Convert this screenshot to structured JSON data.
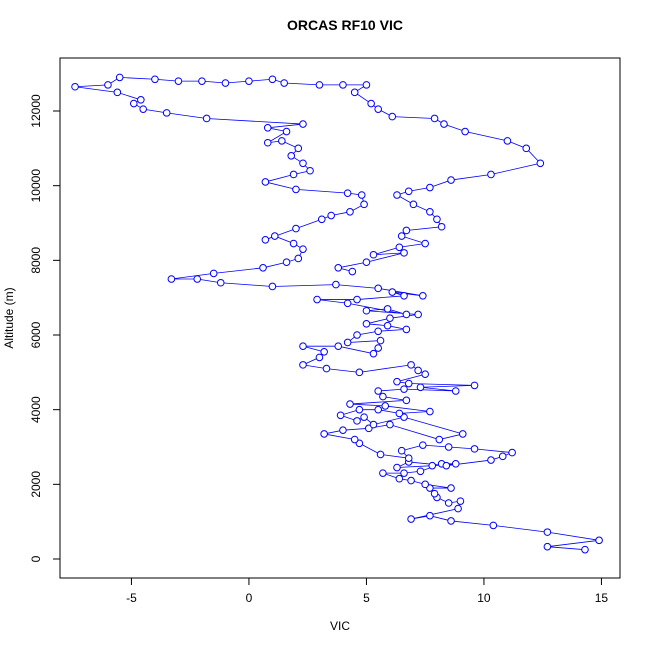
{
  "chart_data": {
    "type": "line",
    "title": "ORCAS RF10 VIC",
    "x_label": "VIC",
    "y_label": "Altitude (m)",
    "xlim": [
      -8.04,
      15.79
    ],
    "ylim": [
      -509,
      13420
    ],
    "xticks": [
      -5,
      0,
      5,
      10,
      15
    ],
    "yticks": [
      0,
      2000,
      4000,
      6000,
      8000,
      10000,
      12000
    ],
    "series": [
      {
        "name": "VIC",
        "color": "#0000ff",
        "x": [
          14.3,
          12.7,
          14.9,
          12.7,
          10.4,
          8.6,
          7.7,
          6.9,
          8.9,
          9.0,
          8.5,
          8.0,
          7.9,
          7.7,
          8.6,
          7.5,
          6.9,
          6.4,
          5.7,
          6.6,
          7.3,
          8.2,
          8.8,
          7.8,
          6.3,
          6.8,
          8.4,
          10.3,
          10.8,
          11.2,
          9.6,
          8.5,
          7.4,
          6.5,
          6.8,
          5.6,
          4.7,
          4.5,
          3.2,
          4.0,
          5.1,
          6.0,
          8.1,
          9.1,
          6.6,
          5.3,
          4.9,
          4.6,
          3.9,
          4.7,
          5.5,
          6.4,
          7.7,
          5.8,
          4.3,
          6.7,
          5.7,
          5.5,
          6.6,
          8.8,
          7.3,
          9.6,
          6.8,
          6.3,
          7.5,
          7.2,
          6.9,
          4.7,
          3.3,
          2.3,
          3.0,
          3.2,
          2.3,
          3.8,
          5.3,
          5.5,
          5.6,
          4.2,
          4.6,
          5.5,
          6.7,
          5.9,
          5.0,
          6.0,
          7.2,
          5.0,
          5.9,
          6.7,
          4.2,
          2.9,
          4.6,
          6.6,
          6.1,
          7.4,
          5.5,
          3.7,
          1.0,
          -1.2,
          -2.2,
          -3.3,
          -1.5,
          0.6,
          1.6,
          2.1,
          2.3,
          1.9,
          1.1,
          0.7,
          2.0,
          3.1,
          3.5,
          4.3,
          4.9,
          4.8,
          4.2,
          2.0,
          0.7,
          1.9,
          2.6,
          2.3,
          1.8,
          2.1,
          1.4,
          0.8,
          1.6,
          0.8,
          2.3,
          -1.8,
          -3.5,
          -4.5,
          -4.9,
          -4.6,
          -5.6,
          -7.4,
          -6.0,
          -5.5,
          -4.0,
          -3.0,
          -2.0,
          -1.0,
          0.0,
          1.0,
          1.5,
          3.0,
          4.0,
          5.0,
          4.5,
          5.2,
          5.5,
          6.1,
          7.9,
          8.3,
          9.2,
          11.0,
          11.8,
          12.4,
          10.3,
          8.6,
          7.7,
          6.8,
          6.3,
          7.0,
          7.7,
          8.0,
          8.2,
          6.7,
          6.5,
          7.5,
          6.4,
          5.3,
          6.6,
          5.0,
          3.8,
          4.4
        ],
        "values": [
          250,
          330,
          500,
          720,
          900,
          1020,
          1160,
          1070,
          1350,
          1550,
          1500,
          1650,
          1750,
          1900,
          1900,
          2000,
          2100,
          2150,
          2300,
          2300,
          2350,
          2550,
          2550,
          2500,
          2450,
          2600,
          2500,
          2650,
          2750,
          2850,
          2950,
          3000,
          3050,
          2900,
          2700,
          2800,
          3100,
          3200,
          3350,
          3450,
          3500,
          3600,
          3200,
          3350,
          3800,
          3600,
          3800,
          3700,
          3850,
          4000,
          4000,
          3900,
          3950,
          4100,
          4150,
          4250,
          4350,
          4500,
          4550,
          4500,
          4600,
          4650,
          4700,
          4750,
          4950,
          5050,
          5200,
          5000,
          5100,
          5200,
          5400,
          5550,
          5700,
          5700,
          5500,
          5650,
          5850,
          5800,
          6000,
          6100,
          6150,
          6250,
          6300,
          6450,
          6550,
          6650,
          6700,
          6550,
          6850,
          6950,
          6950,
          7050,
          7150,
          7050,
          7250,
          7350,
          7300,
          7400,
          7500,
          7500,
          7650,
          7800,
          7950,
          8050,
          8300,
          8450,
          8650,
          8550,
          8850,
          9100,
          9200,
          9300,
          9500,
          9750,
          9800,
          9900,
          10100,
          10300,
          10400,
          10600,
          10800,
          11000,
          11200,
          11150,
          11450,
          11550,
          11650,
          11800,
          11950,
          12050,
          12200,
          12300,
          12500,
          12650,
          12700,
          12900,
          12850,
          12800,
          12800,
          12750,
          12800,
          12850,
          12750,
          12700,
          12700,
          12700,
          12500,
          12200,
          12050,
          11850,
          11800,
          11650,
          11450,
          11200,
          11000,
          10600,
          10300,
          10150,
          9950,
          9850,
          9750,
          9500,
          9300,
          9100,
          8900,
          8800,
          8650,
          8450,
          8350,
          8150,
          8200,
          7950,
          7800,
          7700
        ]
      }
    ]
  }
}
